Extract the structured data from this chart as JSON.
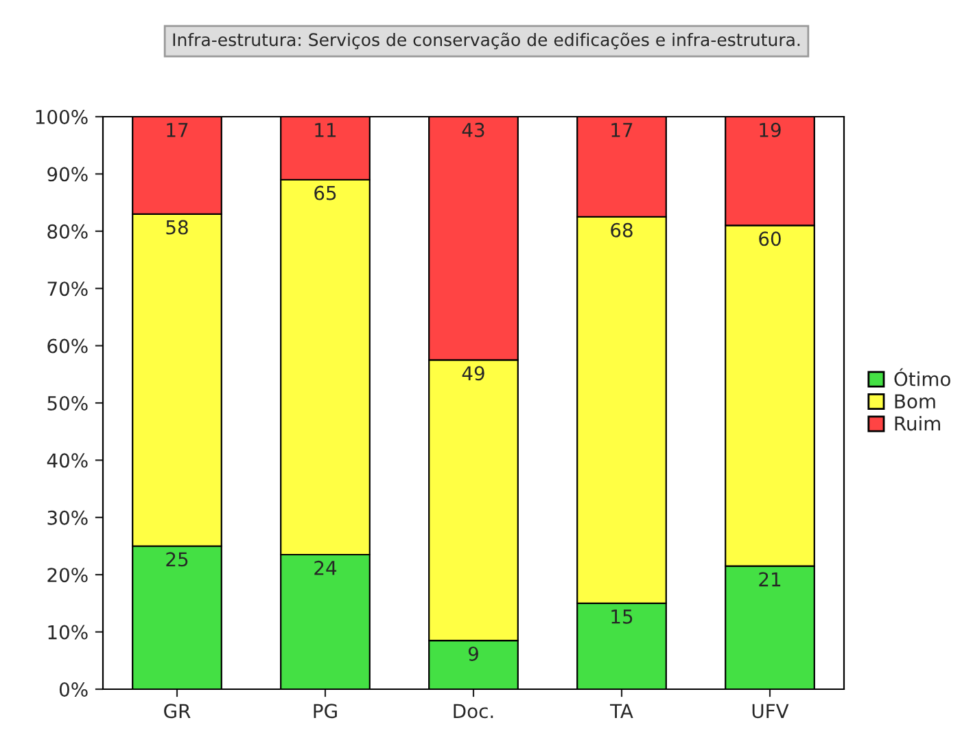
{
  "chart_data": {
    "type": "bar",
    "title": "Infra-estrutura: Serviços de conservação de edificações e infra-estrutura.",
    "categories": [
      "GR",
      "PG",
      "Doc.",
      "TA",
      "UFV"
    ],
    "stacked": true,
    "series": [
      {
        "name": "Ótimo",
        "color": "#44e044",
        "values": [
          25,
          23.5,
          8.5,
          15,
          21.5
        ],
        "value_labels": [
          "25",
          "24",
          "9",
          "15",
          "21"
        ]
      },
      {
        "name": "Bom",
        "color": "#ffff44",
        "values": [
          58,
          65.5,
          49,
          67.5,
          59.5
        ],
        "value_labels": [
          "58",
          "65",
          "49",
          "68",
          "60"
        ]
      },
      {
        "name": "Ruim",
        "color": "#ff4444",
        "values": [
          17,
          11,
          42.5,
          17.5,
          19
        ],
        "value_labels": [
          "17",
          "11",
          "43",
          "17",
          "19"
        ]
      }
    ],
    "ylim": [
      0,
      100
    ],
    "yticks": [
      {
        "value": 0,
        "label": "0%"
      },
      {
        "value": 10,
        "label": "10%"
      },
      {
        "value": 20,
        "label": "20%"
      },
      {
        "value": 30,
        "label": "30%"
      },
      {
        "value": 40,
        "label": "40%"
      },
      {
        "value": 50,
        "label": "50%"
      },
      {
        "value": 60,
        "label": "60%"
      },
      {
        "value": 70,
        "label": "70%"
      },
      {
        "value": 80,
        "label": "80%"
      },
      {
        "value": 90,
        "label": "90%"
      },
      {
        "value": 100,
        "label": "100%"
      }
    ],
    "grid": false,
    "legend": "right"
  }
}
